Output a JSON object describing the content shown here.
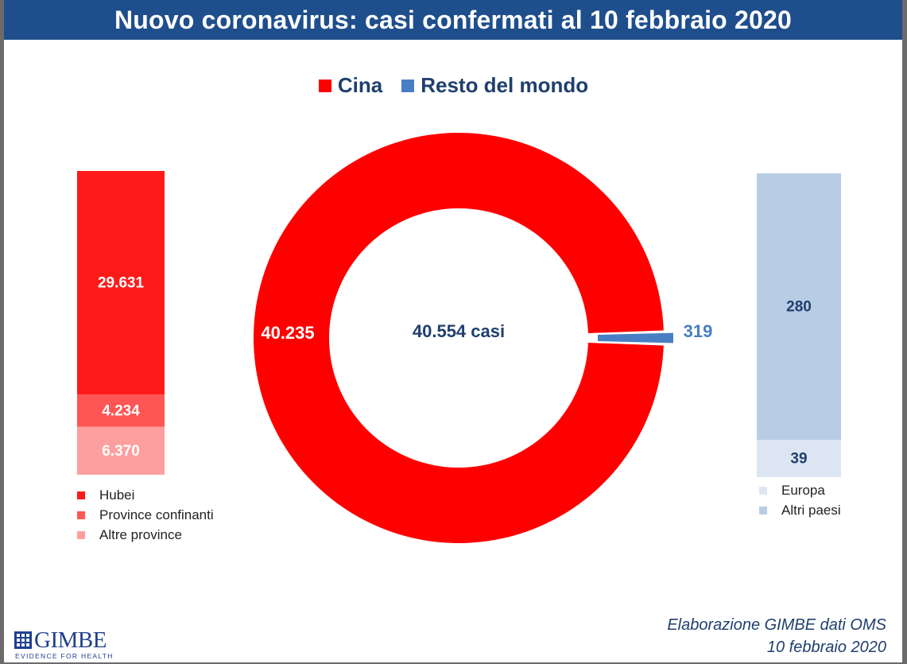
{
  "header": {
    "title": "Nuovo coronavirus: casi confermati al 10 febbraio 2020"
  },
  "chart_data": [
    {
      "type": "pie",
      "subtype": "donut",
      "legend_position": "top",
      "series": [
        {
          "name": "Cina",
          "value": 40235,
          "label": "40.235",
          "color": "#fe0000"
        },
        {
          "name": "Resto del mondo",
          "value": 319,
          "label": "319",
          "color": "#4a7ec4"
        }
      ],
      "center_label": "40.554 casi"
    },
    {
      "type": "bar",
      "stacked": true,
      "legend_position": "bottom",
      "series": [
        {
          "name": "Hubei",
          "value": 29631,
          "label": "29.631",
          "color": "#ff1a1a"
        },
        {
          "name": "Province confinanti",
          "value": 4234,
          "label": "4.234",
          "color": "#fe5555"
        },
        {
          "name": "Altre province",
          "value": 6370,
          "label": "6.370",
          "color": "#fe9f9f"
        }
      ]
    },
    {
      "type": "bar",
      "stacked": true,
      "legend_position": "bottom",
      "series": [
        {
          "name": "Altri paesi",
          "value": 280,
          "label": "280",
          "color": "#b8cce4"
        },
        {
          "name": "Europa",
          "value": 39,
          "label": "39",
          "color": "#dce6f2"
        }
      ],
      "legend_order": [
        "Europa",
        "Altri paesi"
      ]
    }
  ],
  "footer": {
    "credit_line1": "Elaborazione GIMBE dati OMS",
    "credit_line2": "10 febbraio 2020",
    "logo_text": "GIMBE",
    "logo_tagline": "EVIDENCE FOR HEALTH"
  }
}
